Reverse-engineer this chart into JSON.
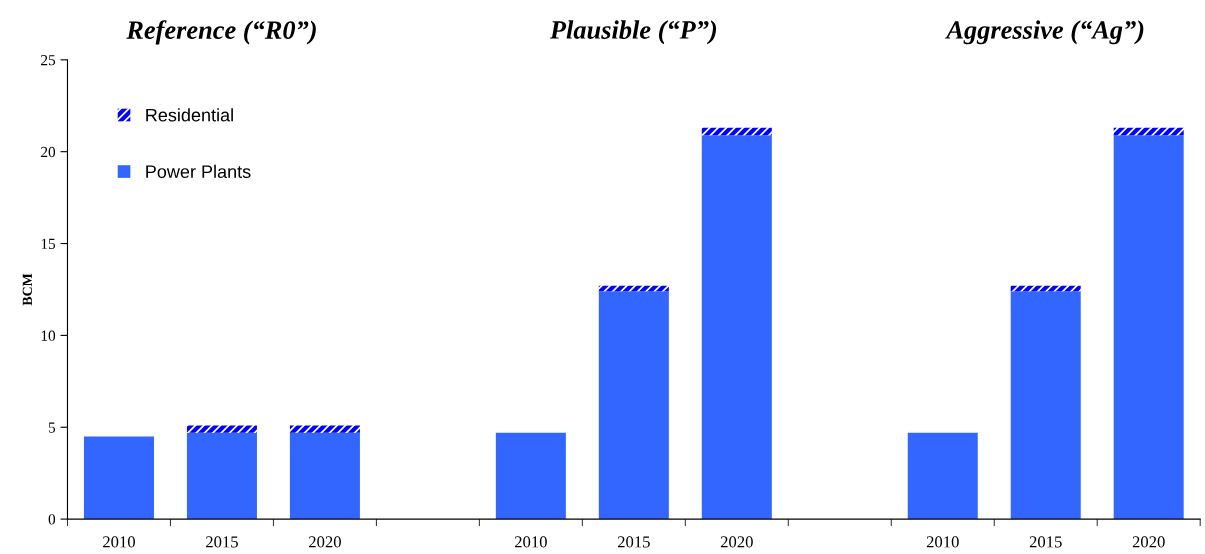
{
  "chart_data": {
    "type": "bar",
    "stacked": true,
    "ylabel": "BCM",
    "annotations": [
      "Reference (“R0”)",
      "Plausible (“P”)",
      "Aggressive (“Ag”)"
    ],
    "categories": [
      "2010",
      "2015",
      "2020",
      null,
      "2010",
      "2015",
      "2020",
      null,
      "2010",
      "2015",
      "2020"
    ],
    "series": [
      {
        "name": "Power Plants",
        "color": "#3366ff",
        "values": [
          4.5,
          4.7,
          4.7,
          null,
          4.7,
          12.4,
          20.9,
          null,
          4.7,
          12.4,
          20.9
        ]
      },
      {
        "name": "Residential",
        "color": "#0000ff",
        "values": [
          null,
          0.4,
          0.4,
          null,
          null,
          0.3,
          0.4,
          null,
          null,
          0.3,
          0.4
        ]
      }
    ],
    "ylim": [
      0,
      25
    ],
    "yticks": [
      0,
      5,
      10,
      15,
      20,
      25
    ],
    "grid": false,
    "legend": "top left"
  }
}
